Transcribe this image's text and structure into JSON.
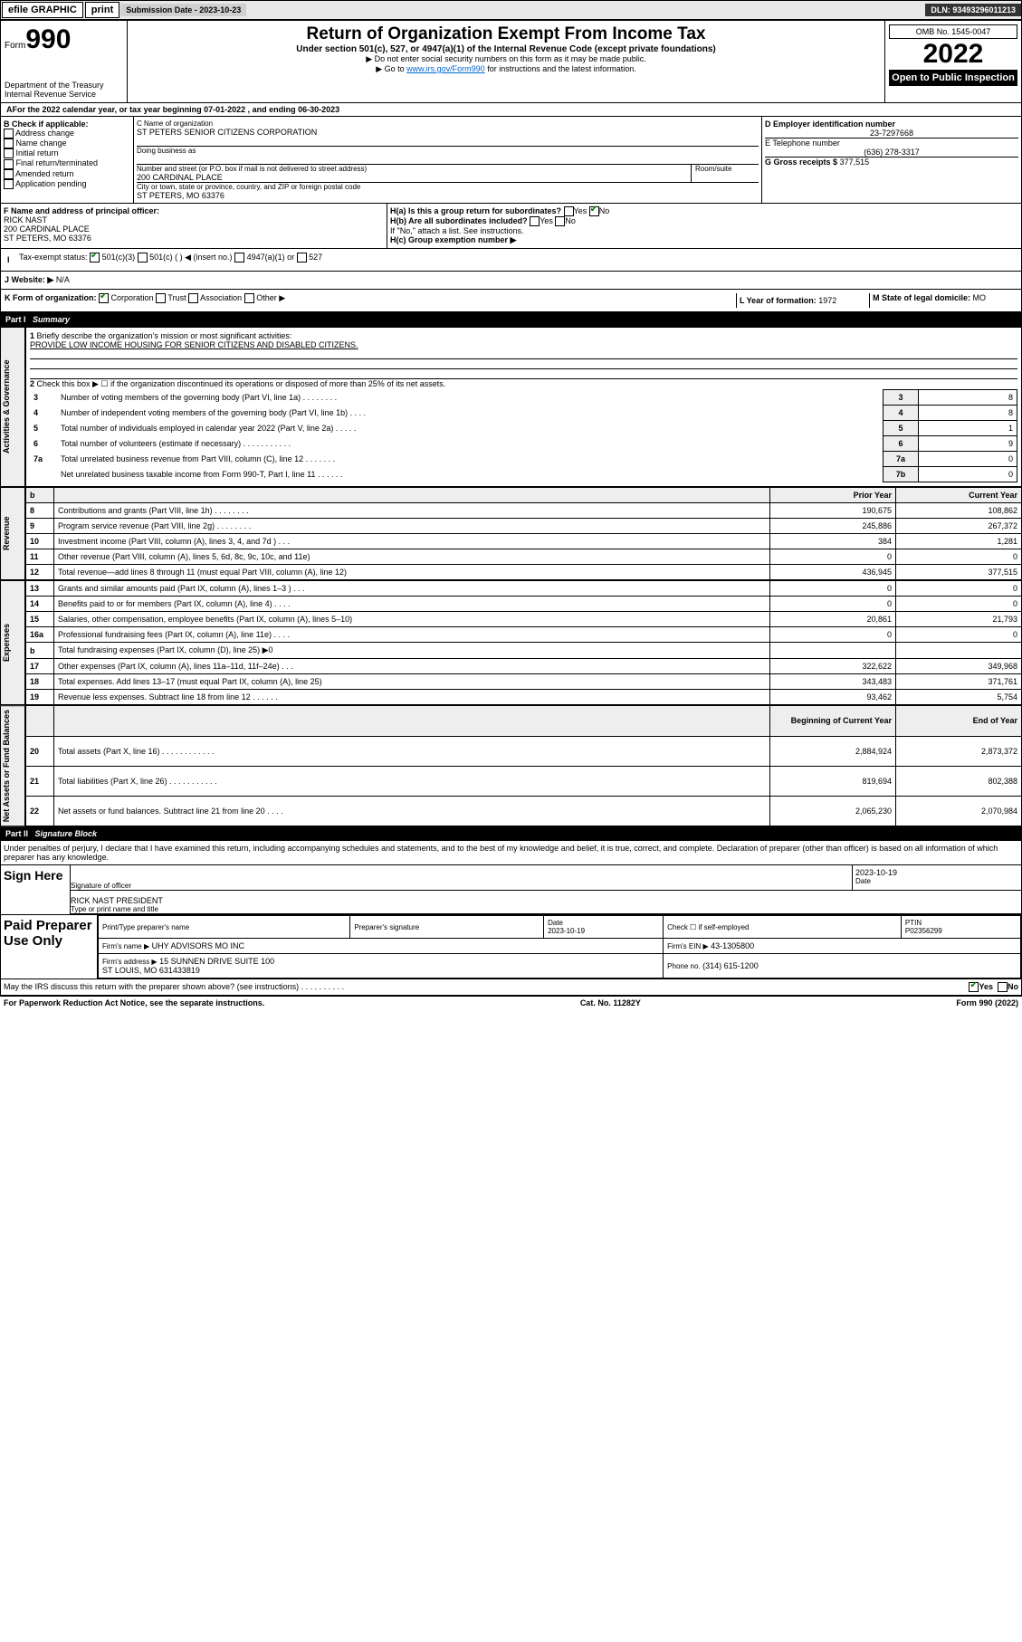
{
  "topbar": {
    "efile": "efile GRAPHIC",
    "print": "print",
    "subDateLabel": "Submission Date - 2023-10-23",
    "dln": "DLN: 93493296011213"
  },
  "header": {
    "form": "Form",
    "f990": "990",
    "dept": "Department of the Treasury",
    "irs": "Internal Revenue Service",
    "title": "Return of Organization Exempt From Income Tax",
    "subtitle": "Under section 501(c), 527, or 4947(a)(1) of the Internal Revenue Code (except private foundations)",
    "instr1": "▶ Do not enter social security numbers on this form as it may be made public.",
    "instr2a": "▶ Go to ",
    "instr2link": "www.irs.gov/Form990",
    "instr2b": " for instructions and the latest information.",
    "omb": "OMB No. 1545-0047",
    "year": "2022",
    "openpub": "Open to Public Inspection"
  },
  "period": {
    "label": "For the 2022 calendar year, or tax year beginning ",
    "begin": "07-01-2022",
    "mid": " , and ending ",
    "end": "06-30-2023"
  },
  "boxB": {
    "title": "B Check if applicable:",
    "items": [
      "Address change",
      "Name change",
      "Initial return",
      "Final return/terminated",
      "Amended return",
      "Application pending"
    ]
  },
  "boxC": {
    "labelName": "C Name of organization",
    "name": "ST PETERS SENIOR CITIZENS CORPORATION",
    "dba": "Doing business as",
    "addrLabel": "Number and street (or P.O. box if mail is not delivered to street address)",
    "room": "Room/suite",
    "street": "200 CARDINAL PLACE",
    "cityLabel": "City or town, state or province, country, and ZIP or foreign postal code",
    "city": "ST PETERS, MO  63376"
  },
  "boxD": {
    "label": "D Employer identification number",
    "ein": "23-7297668"
  },
  "boxE": {
    "label": "E Telephone number",
    "phone": "(636) 278-3317"
  },
  "boxG": {
    "label": "G Gross receipts $",
    "val": "377,515"
  },
  "boxF": {
    "label": "F  Name and address of principal officer:",
    "name": "RICK NAST",
    "street": "200 CARDINAL PLACE",
    "city": "ST PETERS, MO  63376"
  },
  "boxHa": {
    "label": "H(a)  Is this a group return for subordinates?",
    "yes": "Yes",
    "no": "No"
  },
  "boxHb": {
    "label": "H(b)  Are all subordinates included?",
    "yes": "Yes",
    "no": "No",
    "hint": "If \"No,\" attach a list. See instructions."
  },
  "boxHc": {
    "label": "H(c)  Group exemption number ▶"
  },
  "boxI": {
    "label": "Tax-exempt status:",
    "o1": "501(c)(3)",
    "o2": "501(c) (  ) ◀ (insert no.)",
    "o3": "4947(a)(1) or",
    "o4": "527"
  },
  "boxJ": {
    "label": "Website: ▶",
    "val": "N/A"
  },
  "boxK": {
    "label": "K Form of organization:",
    "o1": "Corporation",
    "o2": "Trust",
    "o3": "Association",
    "o4": "Other ▶"
  },
  "boxL": {
    "label": "L Year of formation:",
    "val": "1972"
  },
  "boxM": {
    "label": "M State of legal domicile:",
    "val": "MO"
  },
  "partI": {
    "hdr": "Part I",
    "title": "Summary",
    "l1": "Briefly describe the organization's mission or most significant activities:",
    "mission": "PROVIDE LOW INCOME HOUSING FOR SENIOR CITIZENS AND DISABLED CITIZENS.",
    "l2": "Check this box ▶ ☐  if the organization discontinued its operations or disposed of more than 25% of its net assets.",
    "rowsA": [
      {
        "n": "3",
        "t": "Number of voting members of the governing body (Part VI, line 1a)   .    .    .    .    .    .    .    .",
        "cell": "3",
        "v": "8"
      },
      {
        "n": "4",
        "t": "Number of independent voting members of the governing body (Part VI, line 1b)   .    .    .    .",
        "cell": "4",
        "v": "8"
      },
      {
        "n": "5",
        "t": "Total number of individuals employed in calendar year 2022 (Part V, line 2a)   .    .    .    .    .",
        "cell": "5",
        "v": "1"
      },
      {
        "n": "6",
        "t": "Total number of volunteers (estimate if necessary)   .    .    .    .    .    .    .    .    .    .    .",
        "cell": "6",
        "v": "9"
      },
      {
        "n": "7a",
        "t": "Total unrelated business revenue from Part VIII, column (C), line 12   .    .    .    .    .    .    .",
        "cell": "7a",
        "v": "0"
      },
      {
        "n": "",
        "t": "Net unrelated business taxable income from Form 990-T, Part I, line 11   .    .    .    .    .    .",
        "cell": "7b",
        "v": "0"
      }
    ],
    "colHdrs": {
      "b": "b",
      "py": "Prior Year",
      "cy": "Current Year"
    },
    "rev": [
      {
        "n": "8",
        "t": "Contributions and grants (Part VIII, line 1h)   .    .    .    .    .    .    .    .",
        "p": "190,675",
        "c": "108,862"
      },
      {
        "n": "9",
        "t": "Program service revenue (Part VIII, line 2g)   .    .    .    .    .    .    .    .",
        "p": "245,886",
        "c": "267,372"
      },
      {
        "n": "10",
        "t": "Investment income (Part VIII, column (A), lines 3, 4, and 7d )   .    .    .",
        "p": "384",
        "c": "1,281"
      },
      {
        "n": "11",
        "t": "Other revenue (Part VIII, column (A), lines 5, 6d, 8c, 9c, 10c, and 11e)",
        "p": "0",
        "c": "0"
      },
      {
        "n": "12",
        "t": "Total revenue—add lines 8 through 11 (must equal Part VIII, column (A), line 12)",
        "p": "436,945",
        "c": "377,515"
      }
    ],
    "exp": [
      {
        "n": "13",
        "t": "Grants and similar amounts paid (Part IX, column (A), lines 1–3 )   .    .    .",
        "p": "0",
        "c": "0"
      },
      {
        "n": "14",
        "t": "Benefits paid to or for members (Part IX, column (A), line 4)   .    .    .    .",
        "p": "0",
        "c": "0"
      },
      {
        "n": "15",
        "t": "Salaries, other compensation, employee benefits (Part IX, column (A), lines 5–10)",
        "p": "20,861",
        "c": "21,793"
      },
      {
        "n": "16a",
        "t": "Professional fundraising fees (Part IX, column (A), line 11e)   .    .    .    .",
        "p": "0",
        "c": "0"
      },
      {
        "n": "b",
        "t": "Total fundraising expenses (Part IX, column (D), line 25) ▶0",
        "p": "",
        "c": "",
        "shade": true
      },
      {
        "n": "17",
        "t": "Other expenses (Part IX, column (A), lines 11a–11d, 11f–24e)   .    .    .",
        "p": "322,622",
        "c": "349,968"
      },
      {
        "n": "18",
        "t": "Total expenses. Add lines 13–17 (must equal Part IX, column (A), line 25)",
        "p": "343,483",
        "c": "371,761"
      },
      {
        "n": "19",
        "t": "Revenue less expenses. Subtract line 18 from line 12   .    .    .    .    .    .",
        "p": "93,462",
        "c": "5,754"
      }
    ],
    "naHdr": {
      "b": "Beginning of Current Year",
      "e": "End of Year"
    },
    "na": [
      {
        "n": "20",
        "t": "Total assets (Part X, line 16)   .    .    .    .    .    .    .    .    .    .    .    .",
        "p": "2,884,924",
        "c": "2,873,372"
      },
      {
        "n": "21",
        "t": "Total liabilities (Part X, line 26)   .    .    .    .    .    .    .    .    .    .    .",
        "p": "819,694",
        "c": "802,388"
      },
      {
        "n": "22",
        "t": "Net assets or fund balances. Subtract line 21 from line 20   .    .    .    .",
        "p": "2,065,230",
        "c": "2,070,984"
      }
    ],
    "vlabels": {
      "ag": "Activities & Governance",
      "rev": "Revenue",
      "exp": "Expenses",
      "na": "Net Assets or Fund Balances"
    }
  },
  "partII": {
    "hdr": "Part II",
    "title": "Signature Block",
    "decl": "Under penalties of perjury, I declare that I have examined this return, including accompanying schedules and statements, and to the best of my knowledge and belief, it is true, correct, and complete. Declaration of preparer (other than officer) is based on all information of which preparer has any knowledge.",
    "sign": {
      "label": "Sign Here",
      "sigLine": "Signature of officer",
      "date": "2023-10-19",
      "dateLbl": "Date",
      "name": "RICK NAST PRESIDENT",
      "nameLbl": "Type or print name and title"
    },
    "paid": {
      "label": "Paid Preparer Use Only",
      "h": {
        "p": "Print/Type preparer's name",
        "s": "Preparer's signature",
        "d": "Date",
        "c": "Check ☐ if self-employed",
        "ptin": "PTIN"
      },
      "r": {
        "d": "2023-10-19",
        "ptin": "P02356299"
      },
      "firmNameLbl": "Firm's name   ▶",
      "firmName": "UHY ADVISORS MO INC",
      "firmEinLbl": "Firm's EIN ▶",
      "firmEin": "43-1305800",
      "firmAddrLbl": "Firm's address ▶",
      "firmAddr1": "15 SUNNEN DRIVE SUITE 100",
      "firmAddr2": "ST LOUIS, MO  631433819",
      "phoneLbl": "Phone no.",
      "phone": "(314) 615-1200"
    },
    "discuss": "May the IRS discuss this return with the preparer shown above? (see instructions)    .    .    .    .    .    .    .    .    .    .",
    "yes": "Yes",
    "no": "No"
  },
  "footer": {
    "papwork": "For Paperwork Reduction Act Notice, see the separate instructions.",
    "cat": "Cat. No. 11282Y",
    "form": "Form 990 (2022)"
  }
}
